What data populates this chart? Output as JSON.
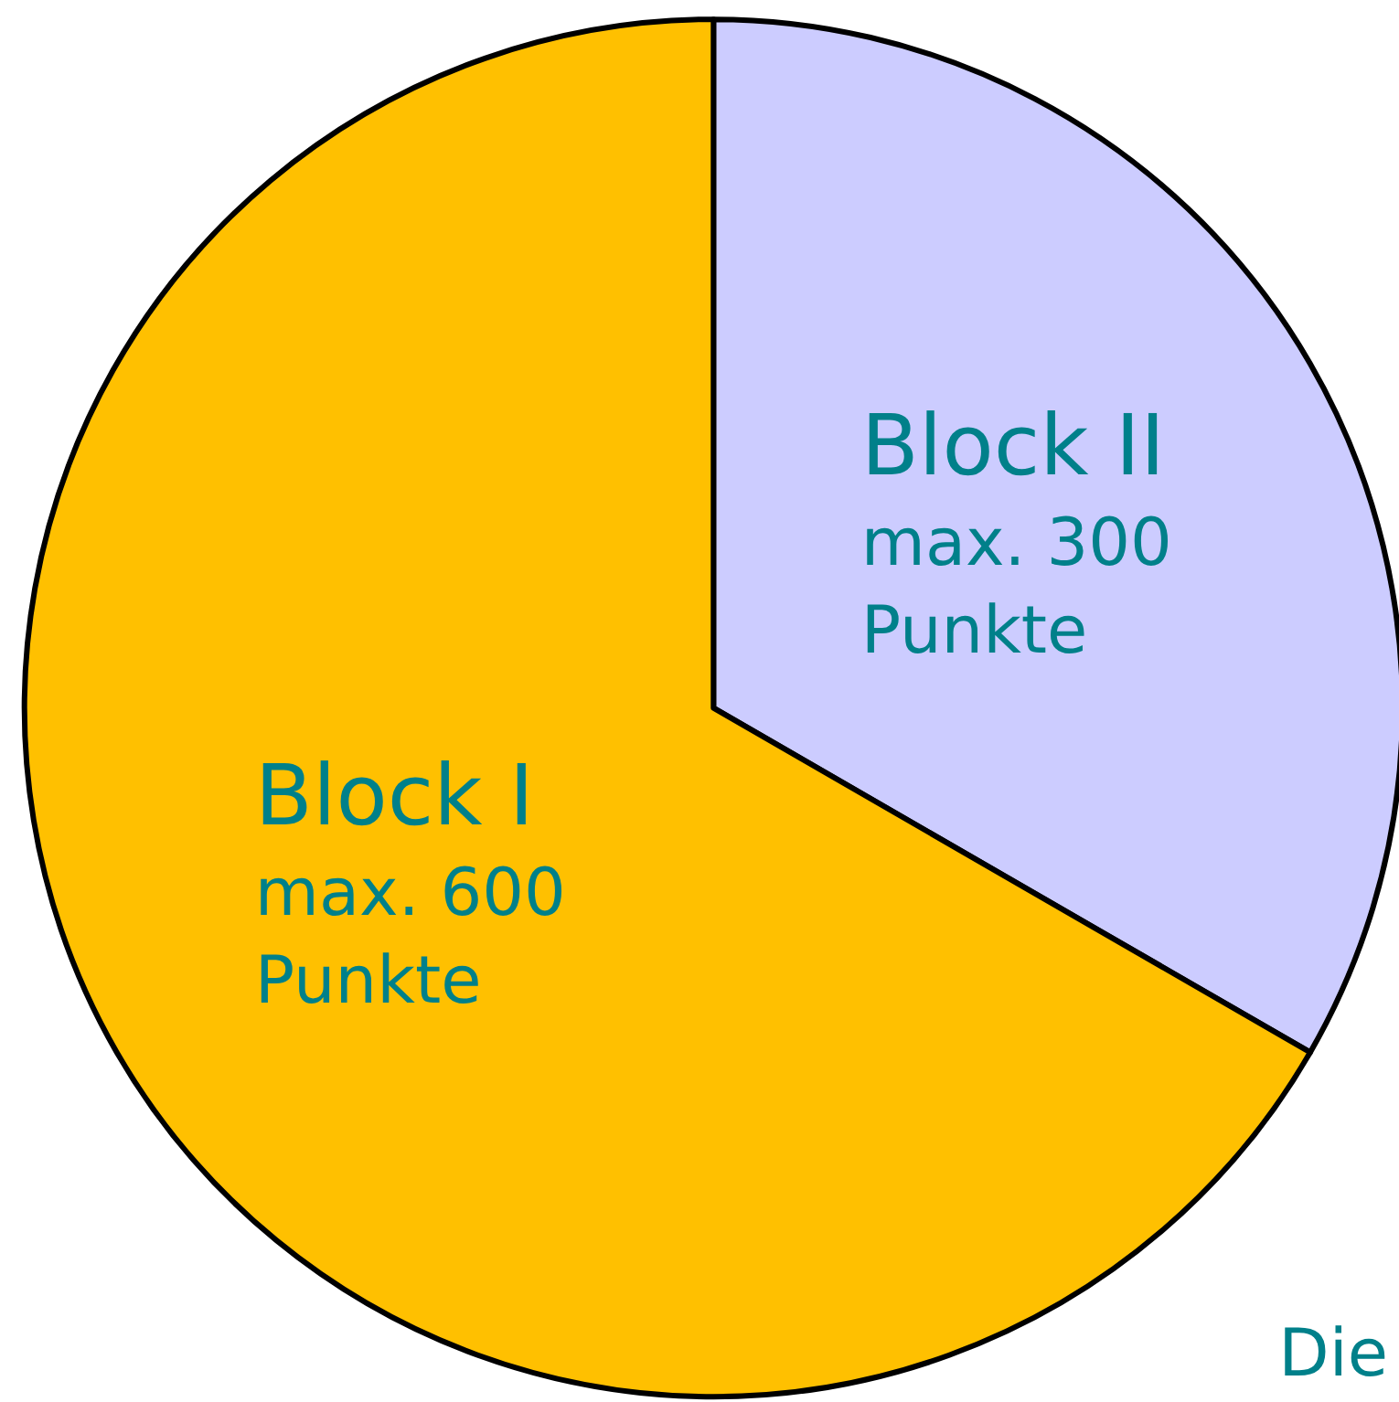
{
  "chart_data": {
    "type": "pie",
    "categories": [
      "Block II",
      "Block I"
    ],
    "values": [
      300,
      600
    ],
    "colors": [
      "#ccccff",
      "#ffc000"
    ],
    "value_labels": [
      "max. 300 Punkte",
      "max. 600 Punkte"
    ],
    "annotations": [
      "Die"
    ]
  }
}
